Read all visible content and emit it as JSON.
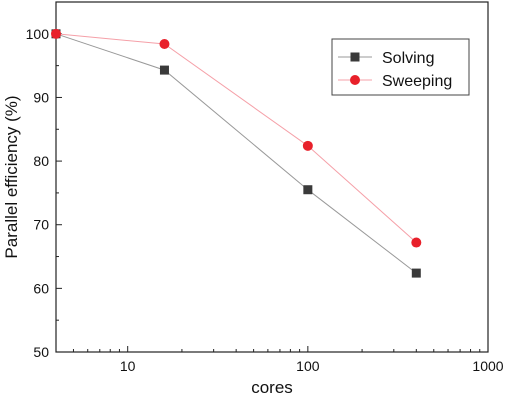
{
  "chart_data": {
    "type": "line",
    "title": "",
    "xlabel": "cores",
    "ylabel": "Parallel efficiency (%)",
    "xscale": "log",
    "xlim": [
      4,
      1000
    ],
    "ylim": [
      50,
      105
    ],
    "xticks": [
      10,
      100,
      1000
    ],
    "xtick_labels": [
      "10",
      "100",
      "1000"
    ],
    "yticks": [
      50,
      60,
      70,
      80,
      90,
      100
    ],
    "ytick_labels": [
      "50",
      "60",
      "70",
      "80",
      "90",
      "100"
    ],
    "grid": false,
    "legend_position": "top-right",
    "series": [
      {
        "name": "Solving",
        "x": [
          4,
          16,
          100,
          400
        ],
        "y": [
          100,
          94.3,
          75.5,
          62.4
        ],
        "color": "#999999",
        "marker": "square",
        "marker_color": "#3a3a3a"
      },
      {
        "name": "Sweeping",
        "x": [
          4,
          16,
          100,
          400
        ],
        "y": [
          100,
          98.4,
          82.4,
          67.2
        ],
        "color": "#f5a0a8",
        "marker": "circle",
        "marker_color": "#e8202a"
      }
    ]
  }
}
